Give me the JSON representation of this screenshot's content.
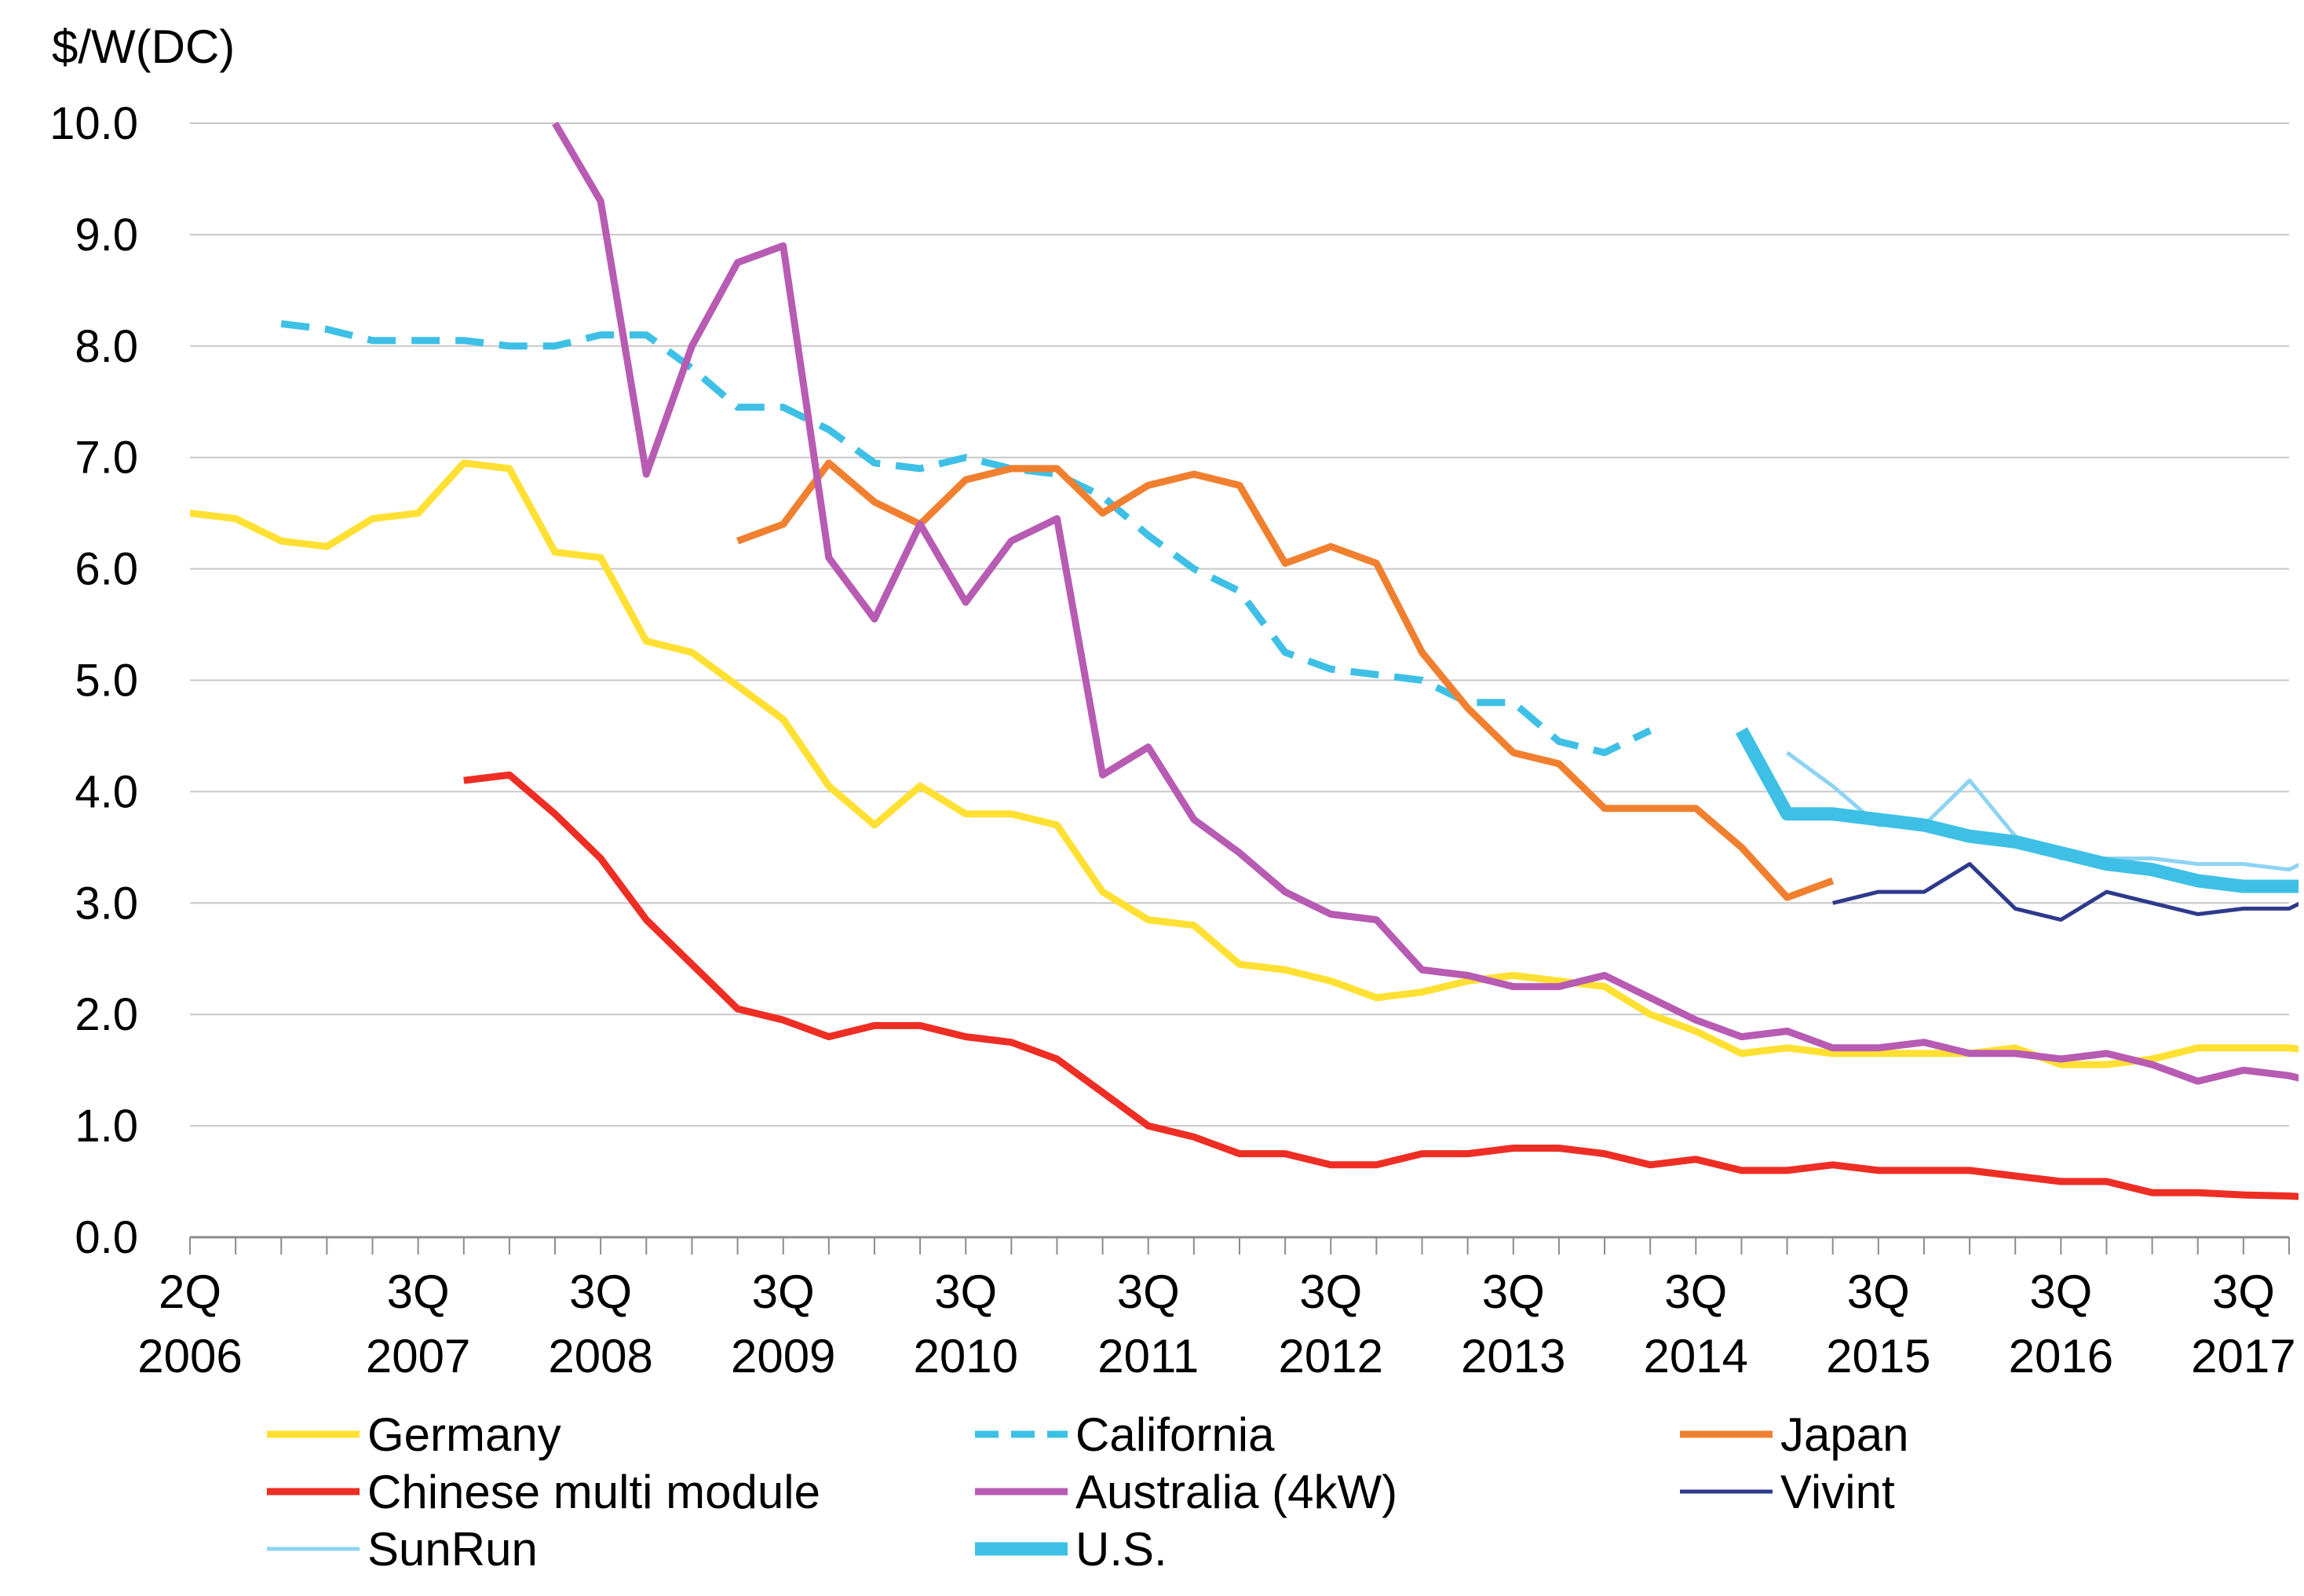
{
  "chart_data": {
    "type": "line",
    "ylabel": "$/W(DC)",
    "ylim": [
      0,
      10
    ],
    "yticks": [
      "0.0",
      "1.0",
      "2.0",
      "3.0",
      "4.0",
      "5.0",
      "6.0",
      "7.0",
      "8.0",
      "9.0",
      "10.0"
    ],
    "grid": true,
    "legend": "bottom",
    "x_start": "2Q 2006",
    "x_end": "4Q 2017",
    "x_ticks": [
      {
        "q": "2Q",
        "year": "2006"
      },
      {
        "q": "3Q",
        "year": "2007"
      },
      {
        "q": "3Q",
        "year": "2008"
      },
      {
        "q": "3Q",
        "year": "2009"
      },
      {
        "q": "3Q",
        "year": "2010"
      },
      {
        "q": "3Q",
        "year": "2011"
      },
      {
        "q": "3Q",
        "year": "2012"
      },
      {
        "q": "3Q",
        "year": "2013"
      },
      {
        "q": "3Q",
        "year": "2014"
      },
      {
        "q": "3Q",
        "year": "2015"
      },
      {
        "q": "3Q",
        "year": "2016"
      },
      {
        "q": "3Q",
        "year": "2017"
      }
    ],
    "series": [
      {
        "name": "Germany",
        "color": "#FFE033",
        "style": "solid",
        "width": "normal",
        "start": "2Q 2006",
        "values": [
          6.5,
          6.45,
          6.25,
          6.2,
          6.45,
          6.5,
          6.95,
          6.9,
          6.15,
          6.1,
          5.35,
          5.25,
          4.95,
          4.65,
          4.05,
          3.7,
          4.05,
          3.8,
          3.8,
          3.7,
          3.1,
          2.85,
          2.8,
          2.45,
          2.4,
          2.3,
          2.15,
          2.2,
          2.3,
          2.35,
          2.3,
          2.25,
          2.0,
          1.85,
          1.65,
          1.7,
          1.65,
          1.65,
          1.65,
          1.65,
          1.7,
          1.55,
          1.55,
          1.6,
          1.7,
          1.7,
          1.7,
          1.65
        ]
      },
      {
        "name": "California",
        "color": "#3EC0E6",
        "style": "dashed",
        "width": "normal",
        "start": "4Q 2006",
        "values": [
          8.2,
          8.15,
          8.05,
          8.05,
          8.05,
          8.0,
          8.0,
          8.1,
          8.1,
          7.8,
          7.45,
          7.45,
          7.25,
          6.95,
          6.9,
          7.0,
          6.9,
          6.85,
          6.65,
          6.3,
          6.0,
          5.8,
          5.25,
          5.1,
          5.05,
          5.0,
          4.8,
          4.8,
          4.45,
          4.35,
          4.55
        ]
      },
      {
        "name": "Japan",
        "color": "#F08030",
        "style": "solid",
        "width": "normal",
        "start": "2Q 2009",
        "values": [
          6.25,
          6.4,
          6.95,
          6.6,
          6.4,
          6.8,
          6.9,
          6.9,
          6.5,
          6.75,
          6.85,
          6.75,
          6.05,
          6.2,
          6.05,
          5.25,
          4.75,
          4.35,
          4.25,
          3.85,
          3.85,
          3.85,
          3.5,
          3.05,
          3.2
        ]
      },
      {
        "name": "Chinese multi module",
        "color": "#EE2E24",
        "style": "solid",
        "width": "normal",
        "start": "4Q 2007",
        "values": [
          4.1,
          4.15,
          3.8,
          3.4,
          2.85,
          2.45,
          2.05,
          1.95,
          1.8,
          1.9,
          1.9,
          1.8,
          1.75,
          1.6,
          1.3,
          1.0,
          0.9,
          0.75,
          0.75,
          0.65,
          0.65,
          0.75,
          0.75,
          0.8,
          0.8,
          0.75,
          0.65,
          0.7,
          0.6,
          0.6,
          0.65,
          0.6,
          0.6,
          0.6,
          0.55,
          0.5,
          0.5,
          0.4,
          0.4,
          0.38,
          0.37,
          0.35
        ]
      },
      {
        "name": "Australia (4kW)",
        "color": "#B75BB3",
        "style": "solid",
        "width": "normal",
        "start": "2Q 2008",
        "values": [
          10.0,
          9.3,
          6.85,
          8.0,
          8.75,
          8.9,
          6.1,
          5.55,
          6.4,
          5.7,
          6.25,
          6.45,
          4.15,
          4.4,
          3.75,
          3.45,
          3.1,
          2.9,
          2.85,
          2.4,
          2.35,
          2.25,
          2.25,
          2.35,
          2.15,
          1.95,
          1.8,
          1.85,
          1.7,
          1.7,
          1.75,
          1.65,
          1.65,
          1.6,
          1.65,
          1.55,
          1.4,
          1.5,
          1.45,
          1.35
        ]
      },
      {
        "name": "Vivint",
        "color": "#2E3A8C",
        "style": "solid",
        "width": "thin",
        "start": "2Q 2015",
        "values": [
          3.0,
          3.1,
          3.1,
          3.35,
          2.95,
          2.85,
          3.1,
          3.0,
          2.9,
          2.95,
          2.95,
          3.15,
          3.1
        ]
      },
      {
        "name": "SunRun",
        "color": "#8ED3F3",
        "style": "solid",
        "width": "thin",
        "start": "1Q 2015",
        "values": [
          4.35,
          4.05,
          3.7,
          3.7,
          4.1,
          3.6,
          3.4,
          3.4,
          3.4,
          3.35,
          3.35,
          3.3,
          3.5
        ]
      },
      {
        "name": "U.S.",
        "color": "#3EC0E6",
        "style": "solid",
        "width": "thick",
        "start": "4Q 2014",
        "values": [
          4.55,
          3.8,
          3.8,
          3.75,
          3.7,
          3.6,
          3.55,
          3.45,
          3.35,
          3.3,
          3.2,
          3.15,
          3.15,
          3.15
        ]
      }
    ]
  }
}
